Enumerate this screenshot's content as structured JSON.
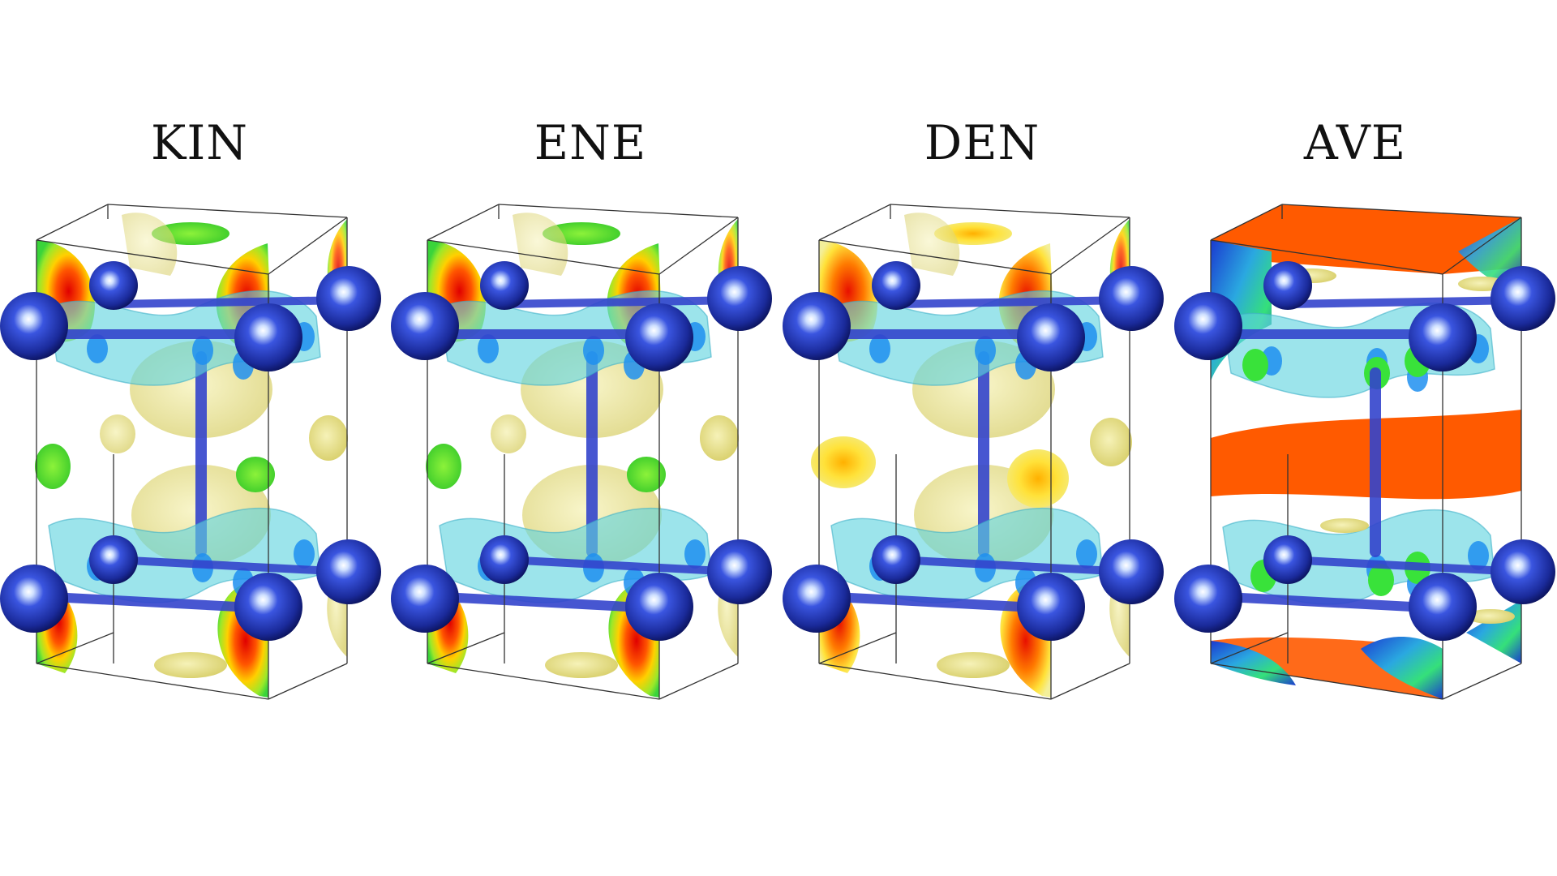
{
  "panels": [
    {
      "title": "KIN",
      "variant": "kin"
    },
    {
      "title": "ENE",
      "variant": "ene"
    },
    {
      "title": "DEN",
      "variant": "den"
    },
    {
      "title": "AVE",
      "variant": "ave"
    }
  ],
  "colors": {
    "atom": "#2233bb",
    "bond": "#3344cc",
    "isosurface_cyan": "#5fd3df",
    "isosurface_yellow": "#e8e08a",
    "hot": "#ff2a00",
    "green": "#39e23a",
    "orange": "#ff5a00",
    "cell_edge": "#333333"
  }
}
